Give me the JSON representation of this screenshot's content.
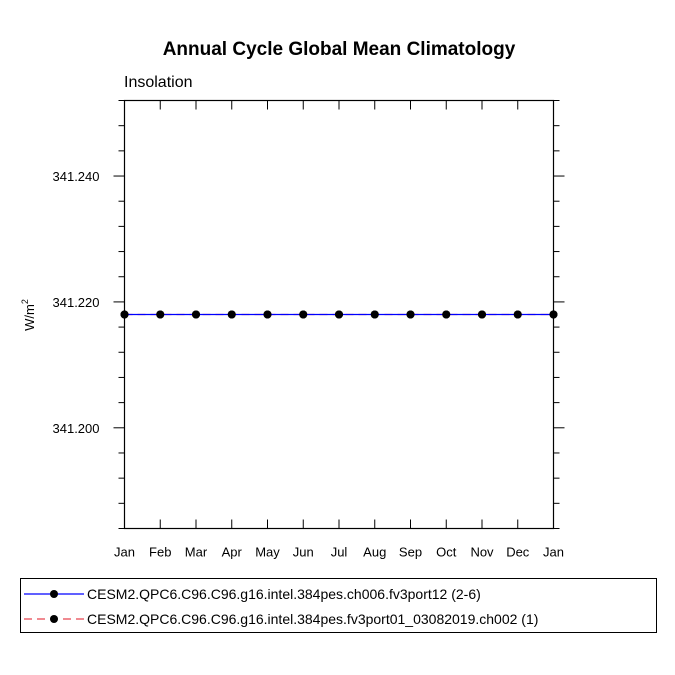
{
  "chart_data": {
    "type": "line",
    "title": "Annual Cycle Global Mean Climatology",
    "subtitle": "Insolation",
    "ylabel_base": "W/m",
    "ylabel_sup": "2",
    "x": [
      "Jan",
      "Feb",
      "Mar",
      "Apr",
      "May",
      "Jun",
      "Jul",
      "Aug",
      "Sep",
      "Oct",
      "Nov",
      "Dec",
      "Jan"
    ],
    "ylim": [
      341.184,
      341.252
    ],
    "yticks": [
      "341.200",
      "341.220",
      "341.240"
    ],
    "ytick_values": [
      341.2,
      341.22,
      341.24
    ],
    "grid": false,
    "legend_position": "bottom",
    "series": [
      {
        "name": "CESM2.QPC6.C96.C96.g16.intel.384pes.ch006.fv3port12 (2-6)",
        "color": "#0000ff",
        "dash": "solid",
        "marker": "filled-circle",
        "values": [
          341.218,
          341.218,
          341.218,
          341.218,
          341.218,
          341.218,
          341.218,
          341.218,
          341.218,
          341.218,
          341.218,
          341.218,
          341.218
        ]
      },
      {
        "name": "CESM2.QPC6.C96.C96.g16.intel.384pes.fv3port01_03082019.ch002 (1)",
        "color": "#e8454f",
        "dash": "dashed",
        "marker": "filled-circle",
        "values": [
          341.218,
          341.218,
          341.218,
          341.218,
          341.218,
          341.218,
          341.218,
          341.218,
          341.218,
          341.218,
          341.218,
          341.218,
          341.218
        ]
      }
    ]
  }
}
